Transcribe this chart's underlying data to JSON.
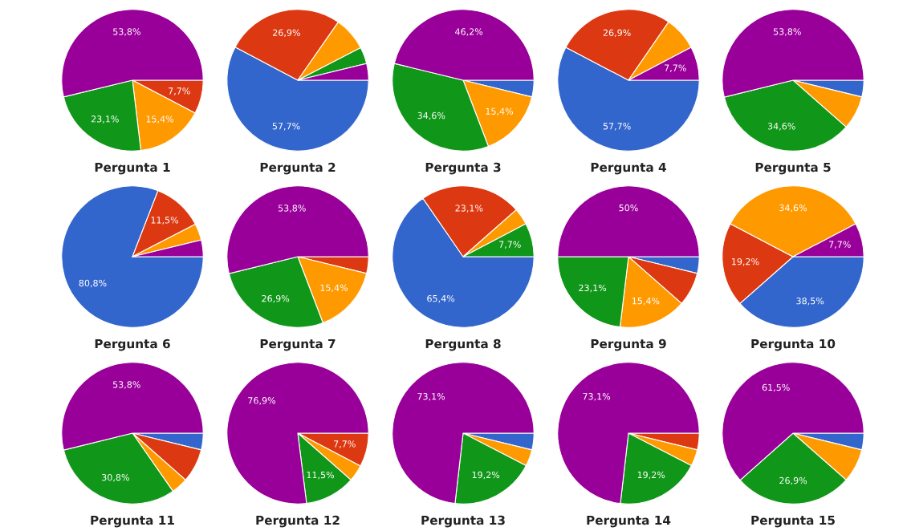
{
  "chart_data": [
    {
      "type": "pie",
      "title": "Pergunta 1",
      "categories": [
        null,
        null,
        null,
        null
      ],
      "values": [
        7.7,
        15.4,
        23.1,
        53.8
      ],
      "colors": [
        "#dc3912",
        "#ff9900",
        "#109618",
        "#990099"
      ],
      "value_labels": [
        "7,7%",
        "15,4%",
        "23,1%",
        "53,8%"
      ]
    },
    {
      "type": "pie",
      "title": "Pergunta 2",
      "categories": [
        null,
        null,
        null,
        null,
        null
      ],
      "values": [
        57.7,
        26.9,
        7.7,
        3.8,
        3.8
      ],
      "colors": [
        "#3366cc",
        "#dc3912",
        "#ff9900",
        "#109618",
        "#990099"
      ],
      "value_labels": [
        "57,7%",
        "26,9%",
        null,
        null,
        null
      ]
    },
    {
      "type": "pie",
      "title": "Pergunta 3",
      "categories": [
        null,
        null,
        null,
        null
      ],
      "values": [
        3.8,
        15.4,
        34.6,
        46.2
      ],
      "colors": [
        "#3366cc",
        "#ff9900",
        "#109618",
        "#990099"
      ],
      "value_labels": [
        null,
        "15,4%",
        "34,6%",
        "46,2%"
      ]
    },
    {
      "type": "pie",
      "title": "Pergunta 4",
      "categories": [
        null,
        null,
        null,
        null
      ],
      "values": [
        57.7,
        26.9,
        7.7,
        7.7
      ],
      "colors": [
        "#3366cc",
        "#dc3912",
        "#ff9900",
        "#990099"
      ],
      "value_labels": [
        "57,7%",
        "26,9%",
        null,
        "7,7%"
      ]
    },
    {
      "type": "pie",
      "title": "Pergunta 5",
      "categories": [
        null,
        null,
        null,
        null
      ],
      "values": [
        3.8,
        7.7,
        34.6,
        53.8
      ],
      "colors": [
        "#3366cc",
        "#ff9900",
        "#109618",
        "#990099"
      ],
      "value_labels": [
        null,
        null,
        "34,6%",
        "53,8%"
      ]
    },
    {
      "type": "pie",
      "title": "Pergunta 6",
      "categories": [
        null,
        null,
        null,
        null
      ],
      "values": [
        80.8,
        11.5,
        3.8,
        3.8
      ],
      "colors": [
        "#3366cc",
        "#dc3912",
        "#ff9900",
        "#990099"
      ],
      "value_labels": [
        "80,8%",
        "11,5%",
        null,
        null
      ]
    },
    {
      "type": "pie",
      "title": "Pergunta 7",
      "categories": [
        null,
        null,
        null,
        null
      ],
      "values": [
        3.8,
        15.4,
        26.9,
        53.8
      ],
      "colors": [
        "#dc3912",
        "#ff9900",
        "#109618",
        "#990099"
      ],
      "value_labels": [
        null,
        "15,4%",
        "26,9%",
        "53,8%"
      ]
    },
    {
      "type": "pie",
      "title": "Pergunta 8",
      "categories": [
        null,
        null,
        null,
        null
      ],
      "values": [
        65.4,
        23.1,
        3.8,
        7.7
      ],
      "colors": [
        "#3366cc",
        "#dc3912",
        "#ff9900",
        "#109618"
      ],
      "value_labels": [
        "65,4%",
        "23,1%",
        null,
        "7,7%"
      ]
    },
    {
      "type": "pie",
      "title": "Pergunta 9",
      "categories": [
        null,
        null,
        null,
        null,
        null
      ],
      "values": [
        3.8,
        7.7,
        15.4,
        23.1,
        50
      ],
      "colors": [
        "#3366cc",
        "#dc3912",
        "#ff9900",
        "#109618",
        "#990099"
      ],
      "value_labels": [
        null,
        null,
        "15,4%",
        "23,1%",
        "50%"
      ]
    },
    {
      "type": "pie",
      "title": "Pergunta 10",
      "categories": [
        null,
        null,
        null,
        null
      ],
      "values": [
        38.5,
        19.2,
        34.6,
        7.7
      ],
      "colors": [
        "#3366cc",
        "#dc3912",
        "#ff9900",
        "#990099"
      ],
      "value_labels": [
        "38,5%",
        "19,2%",
        "34,6%",
        "7,7%"
      ]
    },
    {
      "type": "pie",
      "title": "Pergunta 11",
      "categories": [
        null,
        null,
        null,
        null,
        null
      ],
      "values": [
        3.8,
        7.7,
        3.8,
        30.8,
        53.8
      ],
      "colors": [
        "#3366cc",
        "#dc3912",
        "#ff9900",
        "#109618",
        "#990099"
      ],
      "value_labels": [
        null,
        null,
        null,
        "30,8%",
        "53,8%"
      ]
    },
    {
      "type": "pie",
      "title": "Pergunta 12",
      "categories": [
        null,
        null,
        null,
        null
      ],
      "values": [
        7.7,
        3.8,
        11.5,
        76.9
      ],
      "colors": [
        "#dc3912",
        "#ff9900",
        "#109618",
        "#990099"
      ],
      "value_labels": [
        "7,7%",
        null,
        "11,5%",
        "76,9%"
      ]
    },
    {
      "type": "pie",
      "title": "Pergunta 13",
      "categories": [
        null,
        null,
        null,
        null
      ],
      "values": [
        3.8,
        3.8,
        19.2,
        73.1
      ],
      "colors": [
        "#3366cc",
        "#ff9900",
        "#109618",
        "#990099"
      ],
      "value_labels": [
        null,
        null,
        "19,2%",
        "73,1%"
      ]
    },
    {
      "type": "pie",
      "title": "Pergunta 14",
      "categories": [
        null,
        null,
        null,
        null
      ],
      "values": [
        3.8,
        3.8,
        19.2,
        73.1
      ],
      "colors": [
        "#dc3912",
        "#ff9900",
        "#109618",
        "#990099"
      ],
      "value_labels": [
        null,
        null,
        "19,2%",
        "73,1%"
      ]
    },
    {
      "type": "pie",
      "title": "Pergunta 15",
      "categories": [
        null,
        null,
        null,
        null
      ],
      "values": [
        3.8,
        7.7,
        26.9,
        61.5
      ],
      "colors": [
        "#3366cc",
        "#ff9900",
        "#109618",
        "#990099"
      ],
      "value_labels": [
        null,
        null,
        "26,9%",
        "61,5%"
      ]
    }
  ]
}
